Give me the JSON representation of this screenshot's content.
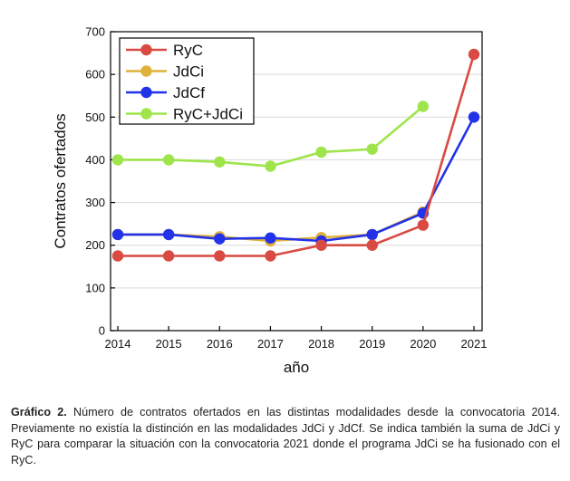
{
  "chart_data": {
    "type": "line",
    "x": [
      2014,
      2015,
      2016,
      2017,
      2018,
      2019,
      2020,
      2021
    ],
    "xlabel": "año",
    "ylabel": "Contratos ofertados",
    "xlim": [
      2014,
      2021
    ],
    "ylim": [
      0,
      700
    ],
    "yticks": [
      0,
      100,
      200,
      300,
      400,
      500,
      600,
      700
    ],
    "grid": true,
    "legend_position": "top-left",
    "series": [
      {
        "name": "RyC",
        "color": "#d94a42",
        "values": [
          175,
          175,
          175,
          175,
          200,
          200,
          247,
          647
        ]
      },
      {
        "name": "JdCi",
        "color": "#e0b23c",
        "values": [
          225,
          225,
          220,
          210,
          218,
          225,
          278,
          null
        ]
      },
      {
        "name": "JdCf",
        "color": "#2232e8",
        "values": [
          225,
          225,
          215,
          217,
          210,
          225,
          275,
          500
        ]
      },
      {
        "name": "RyC+JdCi",
        "color": "#9ee44a",
        "values": [
          400,
          400,
          395,
          385,
          418,
          425,
          525,
          null
        ]
      }
    ]
  },
  "caption": {
    "label": "Gráfico 2.",
    "text": " Número de contratos ofertados en las distintas modalidades desde la convocatoria 2014. Previamente no existía la distinción en las modalidades JdCi y JdCf. Se indica también la suma de JdCi y RyC para comparar la situación con la convocatoria 2021 donde el programa JdCi se ha fusionado con el RyC."
  }
}
